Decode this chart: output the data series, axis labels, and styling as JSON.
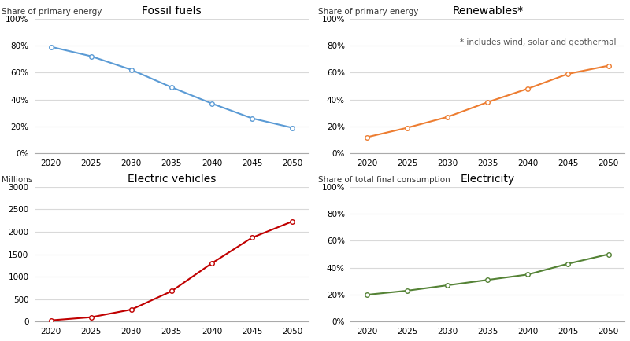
{
  "years": [
    2020,
    2025,
    2030,
    2035,
    2040,
    2045,
    2050
  ],
  "fossil_fuels": [
    0.79,
    0.72,
    0.62,
    0.49,
    0.37,
    0.26,
    0.19
  ],
  "renewables": [
    0.12,
    0.19,
    0.27,
    0.38,
    0.48,
    0.59,
    0.65
  ],
  "electric_vehicles": [
    30,
    100,
    270,
    680,
    1300,
    1870,
    2230
  ],
  "electricity": [
    0.2,
    0.23,
    0.27,
    0.31,
    0.35,
    0.43,
    0.5
  ],
  "fossil_color": "#5b9bd5",
  "renewables_color": "#ed7d31",
  "ev_color": "#c00000",
  "electricity_color": "#548235",
  "background_color": "#ffffff",
  "grid_color": "#d9d9d9",
  "title_fossil": "Fossil fuels",
  "title_renewables": "Renewables*",
  "title_ev": "Electric vehicles",
  "title_electricity": "Electricity",
  "ylabel_fossil": "Share of primary energy",
  "ylabel_renewables": "Share of primary energy",
  "ylabel_ev": "Millions",
  "ylabel_electricity": "Share of total final consumption",
  "annotation_renewables": "* includes wind, solar and geothermal",
  "ylim_pct": [
    0,
    1.0
  ],
  "ylim_ev": [
    0,
    3000
  ],
  "ylim_elec": [
    0,
    1.0
  ],
  "yticks_pct": [
    0.0,
    0.2,
    0.4,
    0.6,
    0.8,
    1.0
  ],
  "yticks_ev": [
    0,
    500,
    1000,
    1500,
    2000,
    2500,
    3000
  ],
  "yticks_elec": [
    0.0,
    0.2,
    0.4,
    0.6,
    0.8,
    1.0
  ],
  "title_fontsize": 10,
  "label_fontsize": 7.5,
  "tick_fontsize": 7.5,
  "annotation_fontsize": 7.5,
  "marker": "o",
  "marker_size": 4,
  "marker_facecolor": "white",
  "linewidth": 1.5
}
